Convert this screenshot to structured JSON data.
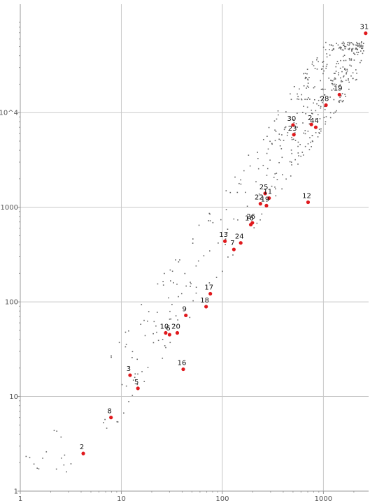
{
  "chart_data": {
    "type": "scatter",
    "title": "",
    "xlabel": "",
    "ylabel": "",
    "x_scale": "log",
    "y_scale": "log",
    "xlim": [
      1,
      2800
    ],
    "ylim": [
      1,
      140000
    ],
    "grid": true,
    "legend": "none",
    "colors": {
      "highlight": "#e0191d",
      "background_points": "#666666",
      "grid": "#c8c8c8",
      "axis": "#999999",
      "tick_text": "#555555"
    },
    "x_ticks": [
      {
        "value": 1,
        "label": "1"
      },
      {
        "value": 10,
        "label": "10"
      },
      {
        "value": 100,
        "label": "100"
      },
      {
        "value": 1000,
        "label": "1000"
      }
    ],
    "y_ticks": [
      {
        "value": 1,
        "label": "1"
      },
      {
        "value": 10,
        "label": "10"
      },
      {
        "value": 100,
        "label": "100"
      },
      {
        "value": 1000,
        "label": "1000"
      },
      {
        "value": 10000,
        "label": "10^4"
      }
    ],
    "highlighted_points": [
      {
        "label": "2",
        "x": 4.2,
        "y": 2.5
      },
      {
        "label": "8",
        "x": 7.9,
        "y": 6.0
      },
      {
        "label": "3",
        "x": 12.2,
        "y": 16.8
      },
      {
        "label": "5",
        "x": 14.6,
        "y": 12.2
      },
      {
        "label": "10",
        "x": 27.5,
        "y": 47
      },
      {
        "label": "6",
        "x": 30.0,
        "y": 45
      },
      {
        "label": "20",
        "x": 35.8,
        "y": 47
      },
      {
        "label": "9",
        "x": 43.5,
        "y": 72
      },
      {
        "label": "16",
        "x": 41.0,
        "y": 19.4
      },
      {
        "label": "18",
        "x": 69.0,
        "y": 89
      },
      {
        "label": "17",
        "x": 76.0,
        "y": 122
      },
      {
        "label": "13",
        "x": 106,
        "y": 438
      },
      {
        "label": "7",
        "x": 130,
        "y": 358
      },
      {
        "label": "24",
        "x": 152,
        "y": 420
      },
      {
        "label": "16",
        "x": 191,
        "y": 655
      },
      {
        "label": "26",
        "x": 198,
        "y": 685
      },
      {
        "label": "22",
        "x": 238,
        "y": 1090
      },
      {
        "label": "19",
        "x": 273,
        "y": 1040
      },
      {
        "label": "25",
        "x": 265,
        "y": 1400
      },
      {
        "label": "11",
        "x": 290,
        "y": 1250
      },
      {
        "label": "12",
        "x": 705,
        "y": 1130
      },
      {
        "label": "23",
        "x": 510,
        "y": 5850
      },
      {
        "label": "30",
        "x": 500,
        "y": 7400
      },
      {
        "label": "2",
        "x": 760,
        "y": 7500
      },
      {
        "label": "44",
        "x": 840,
        "y": 7000
      },
      {
        "label": "28",
        "x": 1060,
        "y": 12000
      },
      {
        "label": "19",
        "x": 1440,
        "y": 15500
      },
      {
        "label": "31",
        "x": 2620,
        "y": 69000
      }
    ],
    "background_point_count": 500
  }
}
